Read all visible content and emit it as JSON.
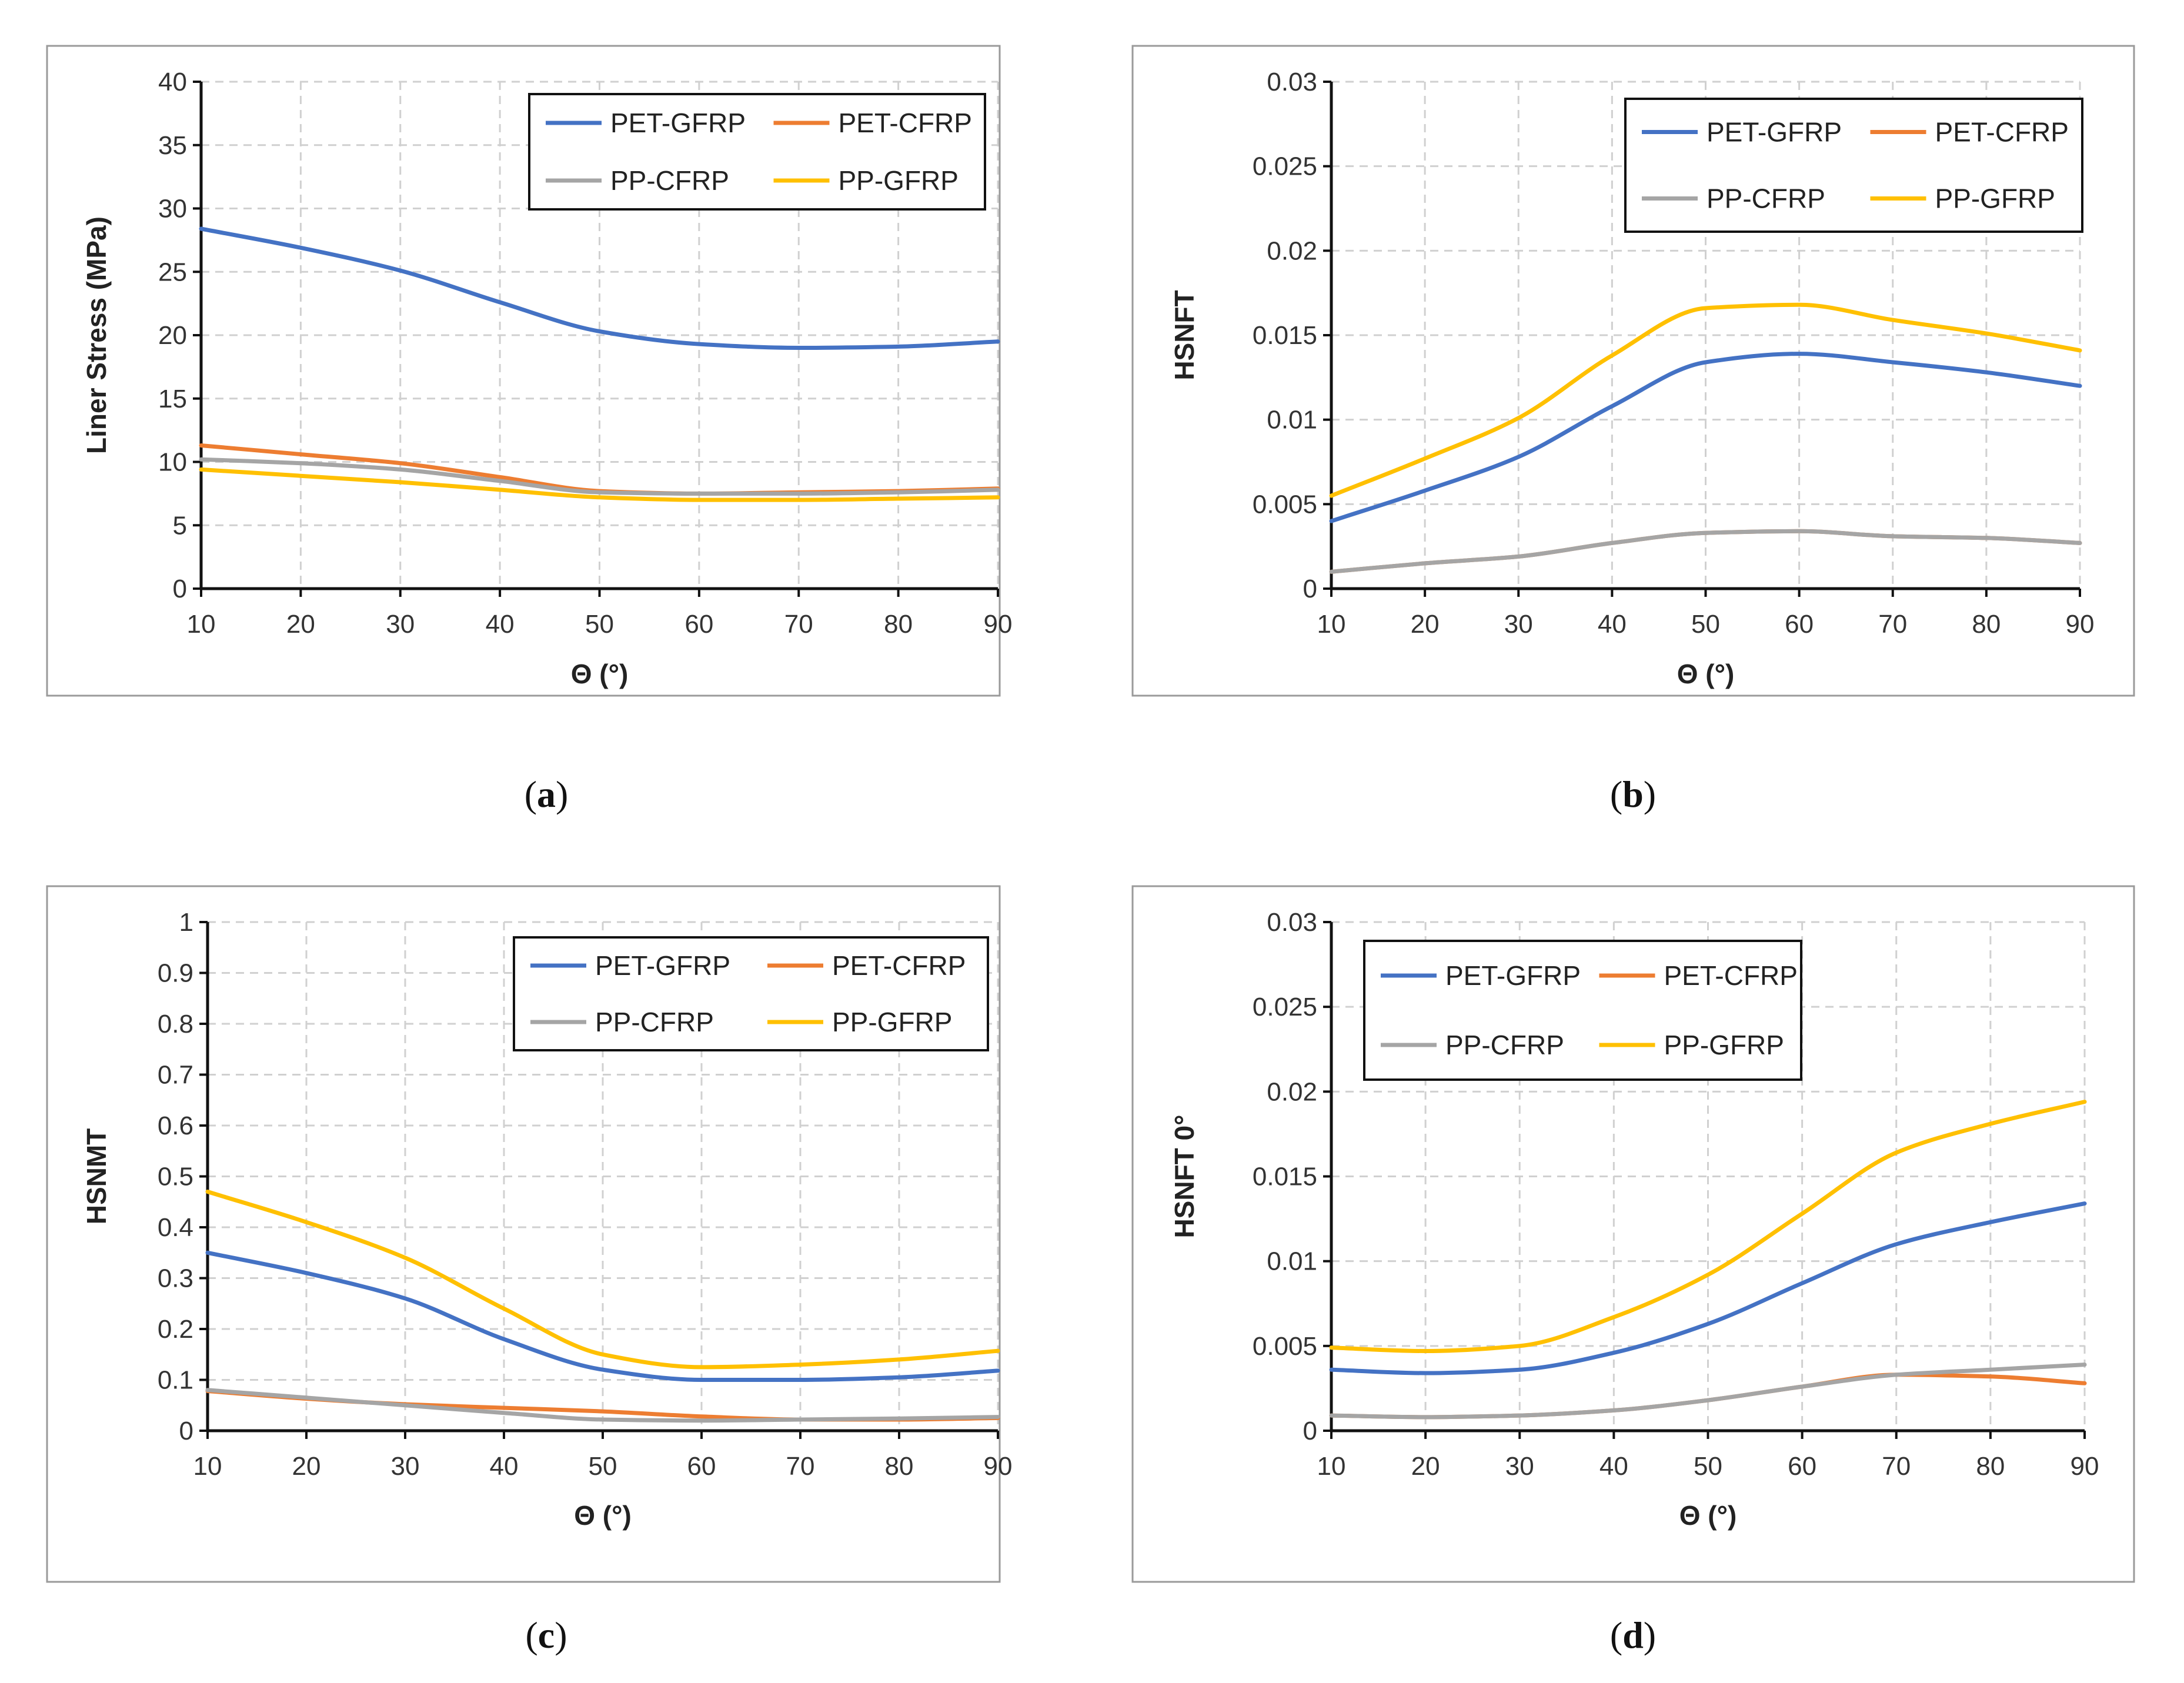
{
  "colors": {
    "PET-GFRP": "#4472C4",
    "PET-CFRP": "#ED7D31",
    "PP-CFRP": "#A5A5A5",
    "PP-GFRP": "#FFC000"
  },
  "chart_data": [
    {
      "type": "line",
      "panel_label": "a",
      "xlabel": "Θ (°)",
      "ylabel": "Liner Stress (MPa)",
      "xlim": [
        10,
        90
      ],
      "ylim": [
        0,
        40
      ],
      "xticks": [
        "10",
        "20",
        "30",
        "40",
        "50",
        "60",
        "70",
        "80",
        "90"
      ],
      "yticks": [
        "0",
        "5",
        "10",
        "15",
        "20",
        "25",
        "30",
        "35",
        "40"
      ],
      "grid": true,
      "legend_position": "top-right",
      "x": [
        10,
        20,
        30,
        40,
        50,
        60,
        70,
        80,
        90
      ],
      "series": [
        {
          "name": "PET-GFRP",
          "values": [
            28.4,
            26.9,
            25.1,
            22.6,
            20.3,
            19.3,
            19.0,
            19.1,
            19.5
          ]
        },
        {
          "name": "PET-CFRP",
          "values": [
            11.3,
            10.6,
            9.9,
            8.8,
            7.7,
            7.5,
            7.6,
            7.7,
            7.9
          ]
        },
        {
          "name": "PP-CFRP",
          "values": [
            10.2,
            9.9,
            9.4,
            8.5,
            7.6,
            7.5,
            7.5,
            7.6,
            7.8
          ]
        },
        {
          "name": "PP-GFRP",
          "values": [
            9.4,
            8.9,
            8.4,
            7.8,
            7.2,
            7.0,
            7.0,
            7.1,
            7.2
          ]
        }
      ]
    },
    {
      "type": "line",
      "panel_label": "b",
      "xlabel": "Θ (°)",
      "ylabel": "HSNFT",
      "xlim": [
        10,
        90
      ],
      "ylim": [
        0,
        0.03
      ],
      "xticks": [
        "10",
        "20",
        "30",
        "40",
        "50",
        "60",
        "70",
        "80",
        "90"
      ],
      "yticks": [
        "0",
        "0.005",
        "0.01",
        "0.015",
        "0.02",
        "0.025",
        "0.03"
      ],
      "grid": true,
      "legend_position": "top-right",
      "x": [
        10,
        20,
        30,
        40,
        50,
        60,
        70,
        80,
        90
      ],
      "series": [
        {
          "name": "PET-GFRP",
          "values": [
            0.004,
            0.0058,
            0.0078,
            0.0108,
            0.0134,
            0.0139,
            0.0134,
            0.0128,
            0.012
          ]
        },
        {
          "name": "PET-CFRP",
          "values": [
            0.001,
            0.0015,
            0.0019,
            0.0027,
            0.0033,
            0.0034,
            0.0031,
            0.003,
            0.0027
          ]
        },
        {
          "name": "PP-CFRP",
          "values": [
            0.001,
            0.0015,
            0.0019,
            0.0027,
            0.0033,
            0.0034,
            0.0031,
            0.003,
            0.0027
          ]
        },
        {
          "name": "PP-GFRP",
          "values": [
            0.0055,
            0.0077,
            0.0101,
            0.0138,
            0.0166,
            0.0168,
            0.0159,
            0.0151,
            0.0141
          ]
        }
      ]
    },
    {
      "type": "line",
      "panel_label": "c",
      "xlabel": "Θ (°)",
      "ylabel": "HSNMT",
      "xlim": [
        10,
        90
      ],
      "ylim": [
        0,
        1
      ],
      "xticks": [
        "10",
        "20",
        "30",
        "40",
        "50",
        "60",
        "70",
        "80",
        "90"
      ],
      "yticks": [
        "0",
        "0.1",
        "0.2",
        "0.3",
        "0.4",
        "0.5",
        "0.6",
        "0.7",
        "0.8",
        "0.9",
        "1"
      ],
      "grid": true,
      "legend_position": "top-right",
      "x": [
        10,
        20,
        30,
        40,
        50,
        60,
        70,
        80,
        90
      ],
      "series": [
        {
          "name": "PET-GFRP",
          "values": [
            0.35,
            0.31,
            0.26,
            0.18,
            0.12,
            0.1,
            0.1,
            0.105,
            0.118
          ]
        },
        {
          "name": "PET-CFRP",
          "values": [
            0.078,
            0.063,
            0.052,
            0.045,
            0.038,
            0.028,
            0.022,
            0.022,
            0.025
          ]
        },
        {
          "name": "PP-CFRP",
          "values": [
            0.08,
            0.065,
            0.05,
            0.035,
            0.022,
            0.02,
            0.022,
            0.024,
            0.027
          ]
        },
        {
          "name": "PP-GFRP",
          "values": [
            0.47,
            0.41,
            0.34,
            0.24,
            0.15,
            0.125,
            0.13,
            0.14,
            0.157
          ]
        }
      ]
    },
    {
      "type": "line",
      "panel_label": "d",
      "xlabel": "Θ (°)",
      "ylabel": "HSNFT 0°",
      "xlim": [
        10,
        90
      ],
      "ylim": [
        0,
        0.03
      ],
      "xticks": [
        "10",
        "20",
        "30",
        "40",
        "50",
        "60",
        "70",
        "80",
        "90"
      ],
      "yticks": [
        "0",
        "0.005",
        "0.01",
        "0.015",
        "0.02",
        "0.025",
        "0.03"
      ],
      "grid": true,
      "legend_position": "top-left",
      "x": [
        10,
        20,
        30,
        40,
        50,
        60,
        70,
        80,
        90
      ],
      "series": [
        {
          "name": "PET-GFRP",
          "values": [
            0.0036,
            0.0034,
            0.0036,
            0.0046,
            0.0063,
            0.0087,
            0.011,
            0.0123,
            0.0134
          ]
        },
        {
          "name": "PET-CFRP",
          "values": [
            0.0009,
            0.0008,
            0.0009,
            0.0012,
            0.0018,
            0.0026,
            0.0033,
            0.0032,
            0.0028
          ]
        },
        {
          "name": "PP-CFRP",
          "values": [
            0.0009,
            0.0008,
            0.0009,
            0.0012,
            0.0018,
            0.0026,
            0.0033,
            0.0036,
            0.0039
          ]
        },
        {
          "name": "PP-GFRP",
          "values": [
            0.0049,
            0.0047,
            0.005,
            0.0067,
            0.0092,
            0.0128,
            0.0164,
            0.0181,
            0.0194
          ]
        }
      ]
    }
  ]
}
